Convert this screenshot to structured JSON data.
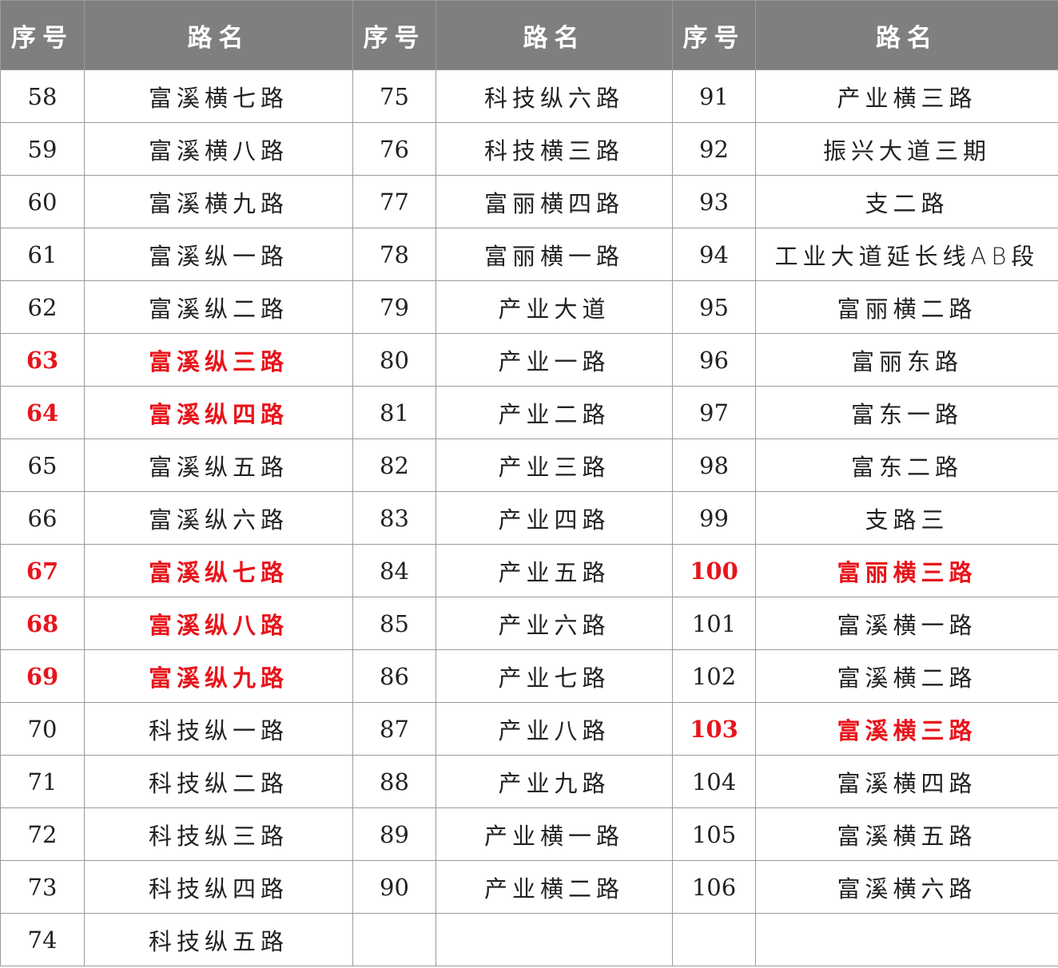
{
  "table": {
    "header": [
      "序号",
      "路名",
      "序号",
      "路名",
      "序号",
      "路名"
    ],
    "highlight_color": "#e8141b",
    "rows": [
      [
        {
          "no": 58,
          "name": "富溪横七路"
        },
        {
          "no": 75,
          "name": "科技纵六路"
        },
        {
          "no": 91,
          "name": "产业横三路"
        }
      ],
      [
        {
          "no": 59,
          "name": "富溪横八路"
        },
        {
          "no": 76,
          "name": "科技横三路"
        },
        {
          "no": 92,
          "name": "振兴大道三期"
        }
      ],
      [
        {
          "no": 60,
          "name": "富溪横九路"
        },
        {
          "no": 77,
          "name": "富丽横四路"
        },
        {
          "no": 93,
          "name": "支二路"
        }
      ],
      [
        {
          "no": 61,
          "name": "富溪纵一路"
        },
        {
          "no": 78,
          "name": "富丽横一路"
        },
        {
          "no": 94,
          "name": "工业大道延长线AB段"
        }
      ],
      [
        {
          "no": 62,
          "name": "富溪纵二路"
        },
        {
          "no": 79,
          "name": "产业大道"
        },
        {
          "no": 95,
          "name": "富丽横二路"
        }
      ],
      [
        {
          "no": 63,
          "name": "富溪纵三路",
          "highlight": true
        },
        {
          "no": 80,
          "name": "产业一路"
        },
        {
          "no": 96,
          "name": "富丽东路"
        }
      ],
      [
        {
          "no": 64,
          "name": "富溪纵四路",
          "highlight": true
        },
        {
          "no": 81,
          "name": "产业二路"
        },
        {
          "no": 97,
          "name": "富东一路"
        }
      ],
      [
        {
          "no": 65,
          "name": "富溪纵五路"
        },
        {
          "no": 82,
          "name": "产业三路"
        },
        {
          "no": 98,
          "name": "富东二路"
        }
      ],
      [
        {
          "no": 66,
          "name": "富溪纵六路"
        },
        {
          "no": 83,
          "name": "产业四路"
        },
        {
          "no": 99,
          "name": "支路三"
        }
      ],
      [
        {
          "no": 67,
          "name": "富溪纵七路",
          "highlight": true
        },
        {
          "no": 84,
          "name": "产业五路"
        },
        {
          "no": 100,
          "name": "富丽横三路",
          "highlight": true
        }
      ],
      [
        {
          "no": 68,
          "name": "富溪纵八路",
          "highlight": true
        },
        {
          "no": 85,
          "name": "产业六路"
        },
        {
          "no": 101,
          "name": "富溪横一路"
        }
      ],
      [
        {
          "no": 69,
          "name": "富溪纵九路",
          "highlight": true
        },
        {
          "no": 86,
          "name": "产业七路"
        },
        {
          "no": 102,
          "name": "富溪横二路"
        }
      ],
      [
        {
          "no": 70,
          "name": "科技纵一路"
        },
        {
          "no": 87,
          "name": "产业八路"
        },
        {
          "no": 103,
          "name": "富溪横三路",
          "highlight": true
        }
      ],
      [
        {
          "no": 71,
          "name": "科技纵二路"
        },
        {
          "no": 88,
          "name": "产业九路"
        },
        {
          "no": 104,
          "name": "富溪横四路"
        }
      ],
      [
        {
          "no": 72,
          "name": "科技纵三路"
        },
        {
          "no": 89,
          "name": "产业横一路"
        },
        {
          "no": 105,
          "name": "富溪横五路"
        }
      ],
      [
        {
          "no": 73,
          "name": "科技纵四路"
        },
        {
          "no": 90,
          "name": "产业横二路"
        },
        {
          "no": 106,
          "name": "富溪横六路"
        }
      ],
      [
        {
          "no": 74,
          "name": "科技纵五路"
        },
        null,
        null
      ]
    ]
  }
}
